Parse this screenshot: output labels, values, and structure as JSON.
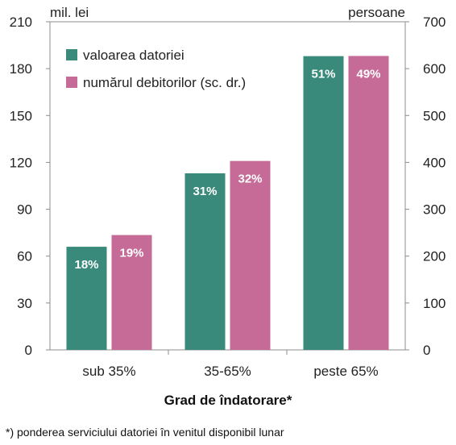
{
  "chart_data": {
    "type": "bar",
    "categories": [
      "sub 35%",
      "35-65%",
      "peste 65%"
    ],
    "series": [
      {
        "name": "valoarea datoriei",
        "axis": "left",
        "color": "#3a8a7c",
        "values": [
          66,
          113,
          188
        ],
        "labels": [
          "18%",
          "31%",
          "51%"
        ]
      },
      {
        "name": "numărul debitorilor (sc. dr.)",
        "axis": "right",
        "color": "#c66b97",
        "values": [
          245,
          403,
          627
        ],
        "labels": [
          "19%",
          "32%",
          "49%"
        ]
      }
    ],
    "ylabel": "mil. lei",
    "ylabel_right": "persoane",
    "ylim": [
      0,
      210
    ],
    "ylim_right": [
      0,
      700
    ],
    "yticks": [
      "0",
      "30",
      "60",
      "90",
      "120",
      "150",
      "180",
      "210"
    ],
    "yticks_right": [
      "0",
      "100",
      "200",
      "300",
      "400",
      "500",
      "600",
      "700"
    ],
    "xlabel": "Grad de îndatorare*",
    "legend_position": "top-left",
    "grid": false
  },
  "footnote": "*) ponderea serviciului datoriei în venitul disponibil lunar"
}
